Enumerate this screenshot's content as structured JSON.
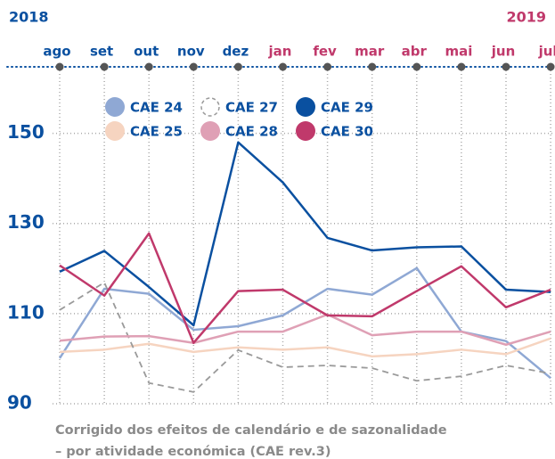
{
  "chart_data": {
    "type": "line",
    "annotations": [
      {
        "text": "2018",
        "color": "#0a50a0"
      },
      {
        "text": "2019",
        "color": "#c0396b"
      }
    ],
    "categories": [
      "ago",
      "set",
      "out",
      "nov",
      "dez",
      "jan",
      "fev",
      "mar",
      "abr",
      "mai",
      "jun",
      "jul"
    ],
    "category_colors": [
      "#0a50a0",
      "#0a50a0",
      "#0a50a0",
      "#0a50a0",
      "#0a50a0",
      "#c0396b",
      "#c0396b",
      "#c0396b",
      "#c0396b",
      "#c0396b",
      "#c0396b",
      "#c0396b"
    ],
    "ylim": [
      90,
      160
    ],
    "yticks": [
      90,
      110,
      130,
      150
    ],
    "grid": true,
    "series": [
      {
        "name": "CAE 24",
        "color": "#8fa8d4",
        "values": [
          100.1,
          115.5,
          114.4,
          106.4,
          107.2,
          109.6,
          115.5,
          114.2,
          120.1,
          106,
          103.9,
          95.7
        ]
      },
      {
        "name": "CAE 25",
        "color": "#f6d4c0",
        "values": [
          101.5,
          102,
          103.3,
          101.5,
          102.5,
          102,
          102.5,
          100.5,
          101,
          102,
          101,
          104.5
        ]
      },
      {
        "name": "CAE 27",
        "color": "#9a9a9a",
        "dashed": true,
        "values": [
          110.8,
          116.9,
          94.6,
          92.6,
          101.9,
          98.1,
          98.5,
          97.9,
          95.1,
          96.1,
          98.5,
          96.7
        ]
      },
      {
        "name": "CAE 28",
        "color": "#dfa0b5",
        "values": [
          104,
          104.9,
          105,
          103.5,
          106,
          106,
          109.8,
          105.2,
          106,
          106,
          103.1,
          106
        ]
      },
      {
        "name": "CAE 29",
        "color": "#0a50a0",
        "values": [
          119.3,
          123.9,
          115.9,
          107.4,
          148,
          139.1,
          126.8,
          124,
          124.7,
          124.9,
          115.3,
          114.8
        ]
      },
      {
        "name": "CAE 30",
        "color": "#c0396b",
        "values": [
          120.7,
          114,
          127.8,
          103.5,
          115,
          115.3,
          109.6,
          109.4,
          115,
          120.5,
          111.4,
          115.3
        ]
      }
    ],
    "notes": [
      "Corrigido dos efeitos de calendário e de sazonalidade",
      "– por atividade económica (CAE rev.3)"
    ]
  }
}
